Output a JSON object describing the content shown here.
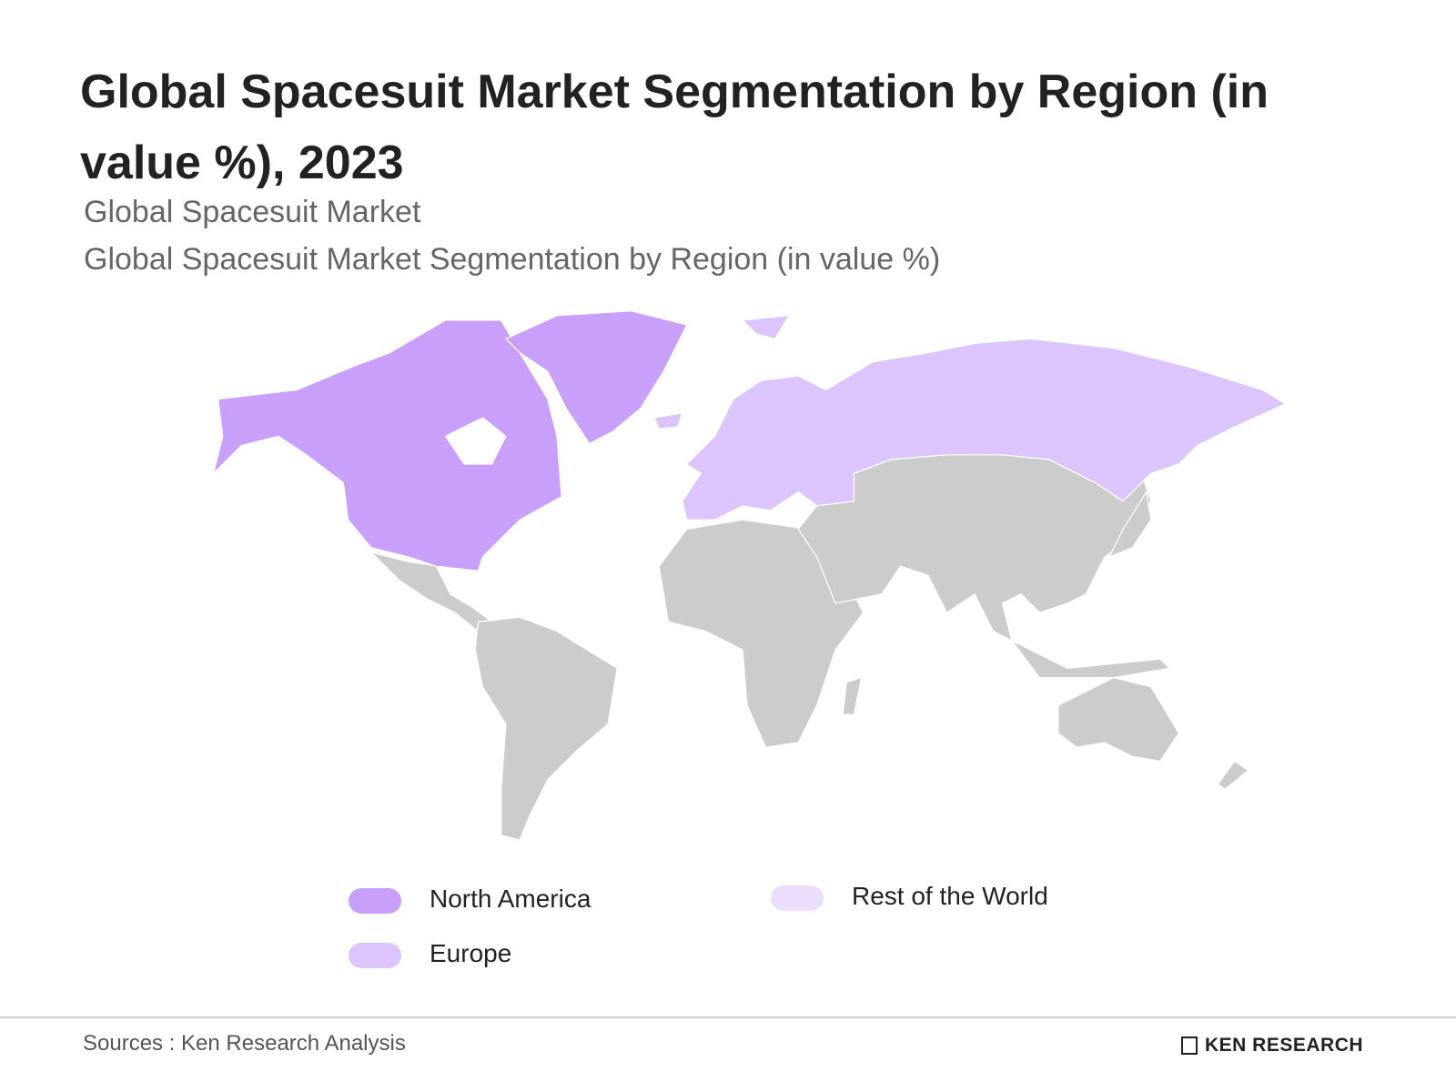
{
  "header": {
    "title": "Global Spacesuit Market Segmentation by Region (in value %), 2023",
    "subtitles": [
      "Global Spacesuit Market",
      "Global Spacesuit Market Segmentation by Region (in value %)"
    ]
  },
  "legend": {
    "items": [
      {
        "name": "North America",
        "color": "#c89ffa"
      },
      {
        "name": "Europe",
        "color": "#dcc4fc"
      },
      {
        "name": "Rest of the World",
        "color": "#ebdffd"
      }
    ]
  },
  "footer": {
    "source": "Sources : Ken Research Analysis",
    "logo": "KEN RESEARCH"
  }
}
